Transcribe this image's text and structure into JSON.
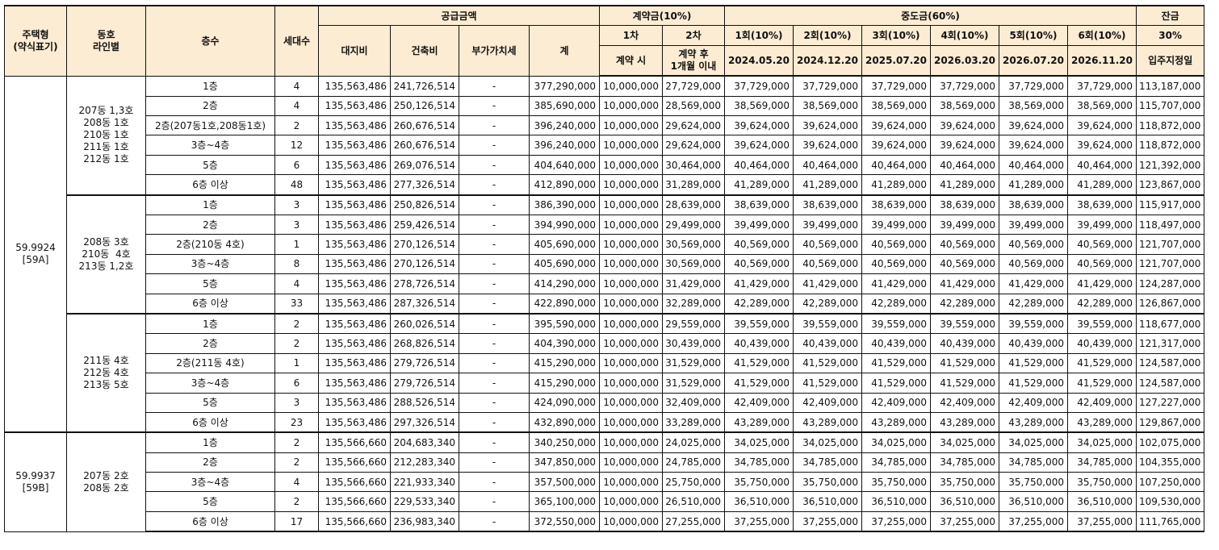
{
  "headers": {
    "type": [
      "주택형",
      "(약식표기)"
    ],
    "line": [
      "동호",
      "라인별"
    ],
    "floor": "층수",
    "units": "세대수",
    "supply": "공급금액",
    "land": "대지비",
    "building": "건축비",
    "vat": "부가가치세",
    "total": "계",
    "deposit": "계약금(10%)",
    "dep1": "1차",
    "dep2": "2차",
    "dep1_when": "계약 시",
    "dep2_when": [
      "계약 후",
      "1개월 이내"
    ],
    "interim": "중도금(60%)",
    "interim_labels": [
      "1회(10%)",
      "2회(10%)",
      "3회(10%)",
      "4회(10%)",
      "5회(10%)",
      "6회(10%)"
    ],
    "interim_dates": [
      "2024.05.20",
      "2024.12.20",
      "2025.07.20",
      "2026.03.20",
      "2026.07.20",
      "2026.11.20"
    ],
    "balance": "잔금",
    "balance_pct": "30%",
    "balance_when": "입주지정일"
  },
  "types": [
    {
      "label": [
        "59.9924",
        "[59A]"
      ]
    },
    {
      "label": [
        "59.9937",
        "[59B]"
      ]
    }
  ],
  "groups": [
    {
      "lines": [
        "207동 1,3호",
        "208동 1호",
        "210동 1호",
        "211동 1호",
        "212동 1호"
      ]
    },
    {
      "lines": [
        "208동 3호",
        "210동  4호",
        "213동 1,2호"
      ]
    },
    {
      "lines": [
        "211동 4호",
        "212동 4호",
        "213동 5호"
      ]
    },
    {
      "lines": [
        "207동 2호",
        "208동 2호"
      ]
    }
  ],
  "rows": [
    [
      "1층",
      "4",
      "135,563,486",
      "241,726,514",
      "-",
      "377,290,000",
      "10,000,000",
      "27,729,000",
      "37,729,000",
      "37,729,000",
      "37,729,000",
      "37,729,000",
      "37,729,000",
      "37,729,000",
      "113,187,000"
    ],
    [
      "2층",
      "4",
      "135,563,486",
      "250,126,514",
      "-",
      "385,690,000",
      "10,000,000",
      "28,569,000",
      "38,569,000",
      "38,569,000",
      "38,569,000",
      "38,569,000",
      "38,569,000",
      "38,569,000",
      "115,707,000"
    ],
    [
      "2층(207동1호,208동1호)",
      "2",
      "135,563,486",
      "260,676,514",
      "-",
      "396,240,000",
      "10,000,000",
      "29,624,000",
      "39,624,000",
      "39,624,000",
      "39,624,000",
      "39,624,000",
      "39,624,000",
      "39,624,000",
      "118,872,000"
    ],
    [
      "3층~4층",
      "12",
      "135,563,486",
      "260,676,514",
      "-",
      "396,240,000",
      "10,000,000",
      "29,624,000",
      "39,624,000",
      "39,624,000",
      "39,624,000",
      "39,624,000",
      "39,624,000",
      "39,624,000",
      "118,872,000"
    ],
    [
      "5층",
      "6",
      "135,563,486",
      "269,076,514",
      "-",
      "404,640,000",
      "10,000,000",
      "30,464,000",
      "40,464,000",
      "40,464,000",
      "40,464,000",
      "40,464,000",
      "40,464,000",
      "40,464,000",
      "121,392,000"
    ],
    [
      "6층 이상",
      "48",
      "135,563,486",
      "277,326,514",
      "-",
      "412,890,000",
      "10,000,000",
      "31,289,000",
      "41,289,000",
      "41,289,000",
      "41,289,000",
      "41,289,000",
      "41,289,000",
      "41,289,000",
      "123,867,000"
    ],
    [
      "1층",
      "3",
      "135,563,486",
      "250,826,514",
      "-",
      "386,390,000",
      "10,000,000",
      "28,639,000",
      "38,639,000",
      "38,639,000",
      "38,639,000",
      "38,639,000",
      "38,639,000",
      "38,639,000",
      "115,917,000"
    ],
    [
      "2층",
      "3",
      "135,563,486",
      "259,426,514",
      "-",
      "394,990,000",
      "10,000,000",
      "29,499,000",
      "39,499,000",
      "39,499,000",
      "39,499,000",
      "39,499,000",
      "39,499,000",
      "39,499,000",
      "118,497,000"
    ],
    [
      "2층(210동 4호)",
      "1",
      "135,563,486",
      "270,126,514",
      "-",
      "405,690,000",
      "10,000,000",
      "30,569,000",
      "40,569,000",
      "40,569,000",
      "40,569,000",
      "40,569,000",
      "40,569,000",
      "40,569,000",
      "121,707,000"
    ],
    [
      "3층~4층",
      "8",
      "135,563,486",
      "270,126,514",
      "-",
      "405,690,000",
      "10,000,000",
      "30,569,000",
      "40,569,000",
      "40,569,000",
      "40,569,000",
      "40,569,000",
      "40,569,000",
      "40,569,000",
      "121,707,000"
    ],
    [
      "5층",
      "4",
      "135,563,486",
      "278,726,514",
      "-",
      "414,290,000",
      "10,000,000",
      "31,429,000",
      "41,429,000",
      "41,429,000",
      "41,429,000",
      "41,429,000",
      "41,429,000",
      "41,429,000",
      "124,287,000"
    ],
    [
      "6층 이상",
      "33",
      "135,563,486",
      "287,326,514",
      "-",
      "422,890,000",
      "10,000,000",
      "32,289,000",
      "42,289,000",
      "42,289,000",
      "42,289,000",
      "42,289,000",
      "42,289,000",
      "42,289,000",
      "126,867,000"
    ],
    [
      "1층",
      "2",
      "135,563,486",
      "260,026,514",
      "-",
      "395,590,000",
      "10,000,000",
      "29,559,000",
      "39,559,000",
      "39,559,000",
      "39,559,000",
      "39,559,000",
      "39,559,000",
      "39,559,000",
      "118,677,000"
    ],
    [
      "2층",
      "2",
      "135,563,486",
      "268,826,514",
      "-",
      "404,390,000",
      "10,000,000",
      "30,439,000",
      "40,439,000",
      "40,439,000",
      "40,439,000",
      "40,439,000",
      "40,439,000",
      "40,439,000",
      "121,317,000"
    ],
    [
      "2층(211동 4호)",
      "1",
      "135,563,486",
      "279,726,514",
      "-",
      "415,290,000",
      "10,000,000",
      "31,529,000",
      "41,529,000",
      "41,529,000",
      "41,529,000",
      "41,529,000",
      "41,529,000",
      "41,529,000",
      "124,587,000"
    ],
    [
      "3층~4층",
      "6",
      "135,563,486",
      "279,726,514",
      "-",
      "415,290,000",
      "10,000,000",
      "31,529,000",
      "41,529,000",
      "41,529,000",
      "41,529,000",
      "41,529,000",
      "41,529,000",
      "41,529,000",
      "124,587,000"
    ],
    [
      "5층",
      "3",
      "135,563,486",
      "288,526,514",
      "-",
      "424,090,000",
      "10,000,000",
      "32,409,000",
      "42,409,000",
      "42,409,000",
      "42,409,000",
      "42,409,000",
      "42,409,000",
      "42,409,000",
      "127,227,000"
    ],
    [
      "6층 이상",
      "23",
      "135,563,486",
      "297,326,514",
      "-",
      "432,890,000",
      "10,000,000",
      "33,289,000",
      "43,289,000",
      "43,289,000",
      "43,289,000",
      "43,289,000",
      "43,289,000",
      "43,289,000",
      "129,867,000"
    ],
    [
      "1층",
      "2",
      "135,566,660",
      "204,683,340",
      "-",
      "340,250,000",
      "10,000,000",
      "24,025,000",
      "34,025,000",
      "34,025,000",
      "34,025,000",
      "34,025,000",
      "34,025,000",
      "34,025,000",
      "102,075,000"
    ],
    [
      "2층",
      "2",
      "135,566,660",
      "212,283,340",
      "-",
      "347,850,000",
      "10,000,000",
      "24,785,000",
      "34,785,000",
      "34,785,000",
      "34,785,000",
      "34,785,000",
      "34,785,000",
      "34,785,000",
      "104,355,000"
    ],
    [
      "3층~4층",
      "4",
      "135,566,660",
      "221,933,340",
      "-",
      "357,500,000",
      "10,000,000",
      "25,750,000",
      "35,750,000",
      "35,750,000",
      "35,750,000",
      "35,750,000",
      "35,750,000",
      "35,750,000",
      "107,250,000"
    ],
    [
      "5층",
      "2",
      "135,566,660",
      "229,533,340",
      "-",
      "365,100,000",
      "10,000,000",
      "26,510,000",
      "36,510,000",
      "36,510,000",
      "36,510,000",
      "36,510,000",
      "36,510,000",
      "36,510,000",
      "109,530,000"
    ],
    [
      "6층 이상",
      "17",
      "135,566,660",
      "236,983,340",
      "-",
      "372,550,000",
      "10,000,000",
      "27,255,000",
      "37,255,000",
      "37,255,000",
      "37,255,000",
      "37,255,000",
      "37,255,000",
      "37,255,000",
      "111,765,000"
    ]
  ]
}
